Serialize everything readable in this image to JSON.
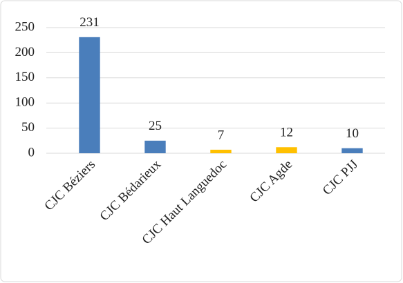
{
  "chart_data": {
    "type": "bar",
    "categories": [
      "CJC Béziers",
      "CJC Bédarieux",
      "CJC Haut Languedoc",
      "CJC Agde",
      "CJC PJJ"
    ],
    "values": [
      231,
      25,
      7,
      12,
      10
    ],
    "colors": [
      "#4a7ebb",
      "#4a7ebb",
      "#ffc000",
      "#ffc000",
      "#4a7ebb"
    ],
    "ylim": [
      0,
      250
    ],
    "yticks": [
      0,
      50,
      100,
      150,
      200,
      250
    ],
    "grid": true,
    "data_labels": true
  }
}
